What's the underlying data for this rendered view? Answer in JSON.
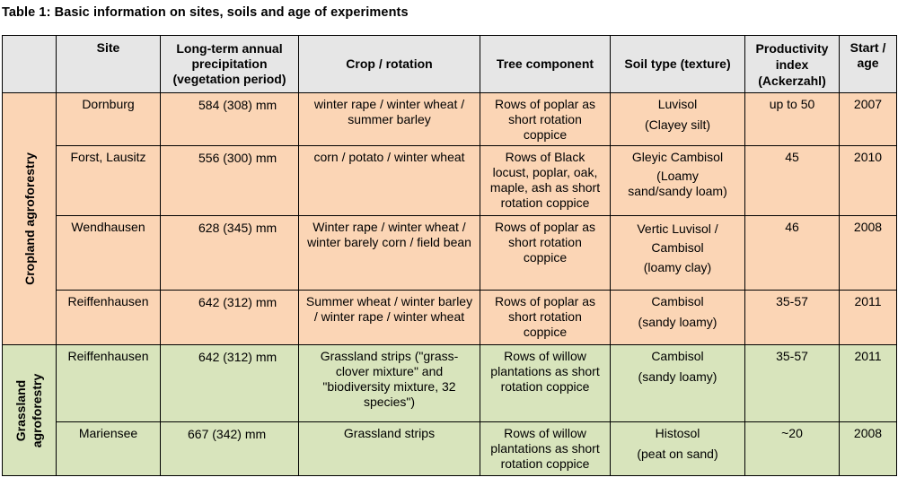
{
  "caption": "Table 1: Basic information on sites, soils and age of experiments",
  "headers": {
    "group": "",
    "site": "Site",
    "precip": "Long-term annual precipitation (vegetation period)",
    "crop": "Crop  / rotation",
    "tree": "Tree component",
    "soil": "Soil type (texture)",
    "prod": "Productivity index (Ackerzahl)",
    "start": "Start / age"
  },
  "groups": {
    "cropland": "Cropland agroforestry",
    "grassland_line1": "Grassland",
    "grassland_line2": "agroforestry"
  },
  "rows": [
    {
      "site": "Dornburg",
      "precip": "584 (308) mm",
      "crop": "winter rape / winter wheat / summer barley",
      "tree": "Rows of poplar as short rotation coppice",
      "soil_type": "Luvisol",
      "soil_texture": "(Clayey silt)",
      "prod": "up to 50",
      "start": "2007"
    },
    {
      "site": "Forst, Lausitz",
      "precip": "556 (300) mm",
      "crop": "corn / potato / winter wheat",
      "tree": "Rows of Black locust, poplar, oak, maple, ash as short rotation coppice",
      "soil_type": "Gleyic Cambisol",
      "soil_texture": "(Loamy sand/sandy loam)",
      "prod": "45",
      "start": "2010"
    },
    {
      "site": "Wendhausen",
      "precip": "628 (345) mm",
      "crop": "Winter rape / winter wheat / winter barely corn / field bean",
      "tree": "Rows of poplar as short rotation coppice",
      "soil_type": "Vertic Luvisol / Cambisol",
      "soil_texture": "(loamy clay)",
      "prod": "46",
      "start": "2008"
    },
    {
      "site": "Reiffenhausen",
      "precip": "642 (312) mm",
      "crop": "Summer wheat / winter barley / winter rape / winter wheat",
      "tree": "Rows of poplar as short rotation coppice",
      "soil_type": "Cambisol",
      "soil_texture": "(sandy loamy)",
      "prod": "35-57",
      "start": "2011"
    },
    {
      "site": "Reiffenhausen",
      "precip": "642 (312) mm",
      "crop": "Grassland strips (\"grass-clover mixture\" and \"biodiversity mixture, 32 species\")",
      "tree": "Rows of willow plantations as short rotation coppice",
      "soil_type": "Cambisol",
      "soil_texture": "(sandy loamy)",
      "prod": "35-57",
      "start": "2011"
    },
    {
      "site": "Mariensee",
      "precip": "667 (342) mm",
      "crop": "Grassland strips",
      "tree": "Rows of willow plantations as short rotation coppice",
      "soil_type": "Histosol",
      "soil_texture": "(peat on sand)",
      "prod": "~20",
      "start": "2008"
    }
  ]
}
